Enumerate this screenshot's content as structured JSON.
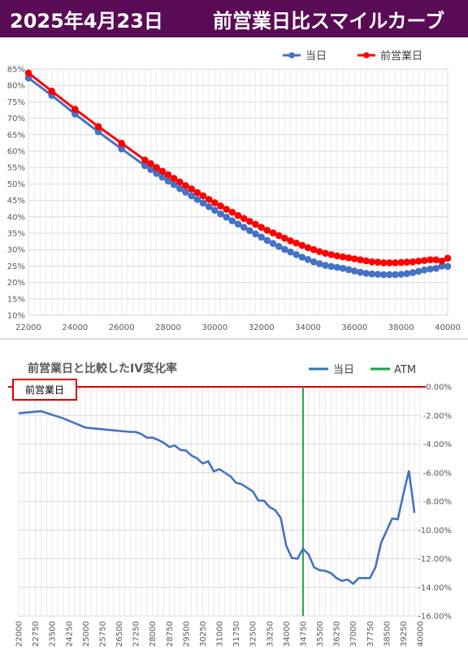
{
  "header": {
    "date": "2025年4月23日",
    "title": "前営業日比スマイルカーブ"
  },
  "chart_data": [
    {
      "type": "line",
      "title": "",
      "x_ticks": [
        22000,
        24000,
        26000,
        28000,
        30000,
        32000,
        34000,
        36000,
        38000,
        40000
      ],
      "y_ticks": [
        "10%",
        "15%",
        "20%",
        "25%",
        "30%",
        "35%",
        "40%",
        "45%",
        "50%",
        "55%",
        "60%",
        "65%",
        "70%",
        "75%",
        "80%",
        "85%"
      ],
      "xlim": [
        22000,
        40000
      ],
      "ylim": [
        10,
        85
      ],
      "legend_position": "top-right",
      "grid": true,
      "series": [
        {
          "name": "当日",
          "color": "#4472c4",
          "points": [
            [
              22000,
              82.3
            ],
            [
              23000,
              77.0
            ],
            [
              24000,
              71.3
            ],
            [
              25000,
              65.9
            ],
            [
              26000,
              60.7
            ],
            [
              27000,
              55.6
            ],
            [
              27250,
              54.4
            ],
            [
              27500,
              53.2
            ],
            [
              27750,
              52.1
            ],
            [
              28000,
              50.9
            ],
            [
              28250,
              49.8
            ],
            [
              28500,
              48.6
            ],
            [
              28750,
              47.5
            ],
            [
              29000,
              46.4
            ],
            [
              29250,
              45.3
            ],
            [
              29500,
              44.2
            ],
            [
              29750,
              43.1
            ],
            [
              30000,
              42.0
            ],
            [
              30250,
              40.9
            ],
            [
              30500,
              39.9
            ],
            [
              30750,
              38.8
            ],
            [
              31000,
              37.8
            ],
            [
              31250,
              36.8
            ],
            [
              31500,
              35.8
            ],
            [
              31750,
              34.8
            ],
            [
              32000,
              33.8
            ],
            [
              32250,
              32.8
            ],
            [
              32500,
              31.9
            ],
            [
              32750,
              31.0
            ],
            [
              33000,
              30.1
            ],
            [
              33250,
              29.3
            ],
            [
              33500,
              28.5
            ],
            [
              33750,
              27.7
            ],
            [
              34000,
              27.0
            ],
            [
              34250,
              26.3
            ],
            [
              34500,
              25.7
            ],
            [
              34750,
              25.2
            ],
            [
              35000,
              24.9
            ],
            [
              35250,
              24.6
            ],
            [
              35500,
              24.3
            ],
            [
              35750,
              23.9
            ],
            [
              36000,
              23.5
            ],
            [
              36250,
              23.1
            ],
            [
              36500,
              22.8
            ],
            [
              36750,
              22.6
            ],
            [
              37000,
              22.5
            ],
            [
              37250,
              22.4
            ],
            [
              37500,
              22.4
            ],
            [
              37750,
              22.4
            ],
            [
              38000,
              22.5
            ],
            [
              38250,
              22.7
            ],
            [
              38500,
              23.0
            ],
            [
              38750,
              23.4
            ],
            [
              39000,
              23.8
            ],
            [
              39250,
              24.1
            ],
            [
              39500,
              24.3
            ],
            [
              39750,
              25.0
            ],
            [
              40000,
              24.9
            ]
          ]
        },
        {
          "name": "前営業日",
          "color": "#ff0000",
          "points": [
            [
              22000,
              83.8
            ],
            [
              23000,
              78.3
            ],
            [
              24000,
              72.8
            ],
            [
              25000,
              67.5
            ],
            [
              26000,
              62.4
            ],
            [
              27000,
              57.3
            ],
            [
              27250,
              56.2
            ],
            [
              27500,
              55.0
            ],
            [
              27750,
              53.9
            ],
            [
              28000,
              52.8
            ],
            [
              28250,
              51.7
            ],
            [
              28500,
              50.6
            ],
            [
              28750,
              49.5
            ],
            [
              29000,
              48.5
            ],
            [
              29250,
              47.4
            ],
            [
              29500,
              46.4
            ],
            [
              29750,
              45.3
            ],
            [
              30000,
              44.3
            ],
            [
              30250,
              43.3
            ],
            [
              30500,
              42.3
            ],
            [
              30750,
              41.4
            ],
            [
              31000,
              40.4
            ],
            [
              31250,
              39.5
            ],
            [
              31500,
              38.6
            ],
            [
              31750,
              37.7
            ],
            [
              32000,
              36.8
            ],
            [
              32250,
              35.9
            ],
            [
              32500,
              35.1
            ],
            [
              32750,
              34.3
            ],
            [
              33000,
              33.5
            ],
            [
              33250,
              32.7
            ],
            [
              33500,
              32.0
            ],
            [
              33750,
              31.3
            ],
            [
              34000,
              30.6
            ],
            [
              34250,
              30.0
            ],
            [
              34500,
              29.4
            ],
            [
              34750,
              28.9
            ],
            [
              35000,
              28.5
            ],
            [
              35250,
              28.1
            ],
            [
              35500,
              27.8
            ],
            [
              35750,
              27.5
            ],
            [
              36000,
              27.2
            ],
            [
              36250,
              26.9
            ],
            [
              36500,
              26.6
            ],
            [
              36750,
              26.3
            ],
            [
              37000,
              26.2
            ],
            [
              37250,
              26.0
            ],
            [
              37500,
              26.0
            ],
            [
              37750,
              26.0
            ],
            [
              38000,
              26.1
            ],
            [
              38250,
              26.2
            ],
            [
              38500,
              26.3
            ],
            [
              38750,
              26.5
            ],
            [
              39000,
              26.7
            ],
            [
              39250,
              26.9
            ],
            [
              39500,
              26.9
            ],
            [
              39750,
              26.5
            ],
            [
              40000,
              27.4
            ]
          ]
        }
      ]
    },
    {
      "type": "line",
      "title": "前営業日と比較したIV変化率",
      "reference_label": "前営業日",
      "x_ticks": [
        22000,
        22750,
        23500,
        24250,
        25000,
        25750,
        26500,
        27250,
        28000,
        28750,
        29500,
        30250,
        31000,
        31750,
        32500,
        33250,
        34000,
        34750,
        35500,
        36250,
        37000,
        37750,
        38500,
        39250,
        40000
      ],
      "y_ticks": [
        "0.00%",
        "-2.00%",
        "-4.00%",
        "-6.00%",
        "-8.00%",
        "-10.00%",
        "-12.00%",
        "-14.00%",
        "-16.00%"
      ],
      "ylim": [
        -16,
        0
      ],
      "legend_position": "top-right",
      "grid": true,
      "atm_strike": 34750,
      "series": [
        {
          "name": "当日",
          "color": "#4472c4",
          "points": [
            [
              22000,
              -1.85
            ],
            [
              23000,
              -1.7
            ],
            [
              24000,
              -2.2
            ],
            [
              25000,
              -2.85
            ],
            [
              26000,
              -3.0
            ],
            [
              27000,
              -3.15
            ],
            [
              27250,
              -3.15
            ],
            [
              27500,
              -3.3
            ],
            [
              27750,
              -3.55
            ],
            [
              28000,
              -3.55
            ],
            [
              28250,
              -3.7
            ],
            [
              28500,
              -3.9
            ],
            [
              28750,
              -4.2
            ],
            [
              29000,
              -4.1
            ],
            [
              29250,
              -4.4
            ],
            [
              29500,
              -4.45
            ],
            [
              29750,
              -4.8
            ],
            [
              30000,
              -5.0
            ],
            [
              30250,
              -5.35
            ],
            [
              30500,
              -5.2
            ],
            [
              30750,
              -5.9
            ],
            [
              31000,
              -5.75
            ],
            [
              31250,
              -6.0
            ],
            [
              31500,
              -6.25
            ],
            [
              31750,
              -6.7
            ],
            [
              32000,
              -6.8
            ],
            [
              32250,
              -7.05
            ],
            [
              32500,
              -7.3
            ],
            [
              32750,
              -7.95
            ],
            [
              33000,
              -7.95
            ],
            [
              33250,
              -8.4
            ],
            [
              33500,
              -8.6
            ],
            [
              33750,
              -9.15
            ],
            [
              34000,
              -11.1
            ],
            [
              34250,
              -11.95
            ],
            [
              34500,
              -12.0
            ],
            [
              34750,
              -11.3
            ],
            [
              35000,
              -11.7
            ],
            [
              35250,
              -12.6
            ],
            [
              35500,
              -12.8
            ],
            [
              35750,
              -12.85
            ],
            [
              36000,
              -13.0
            ],
            [
              36250,
              -13.35
            ],
            [
              36500,
              -13.55
            ],
            [
              36750,
              -13.45
            ],
            [
              37000,
              -13.75
            ],
            [
              37250,
              -13.35
            ],
            [
              37500,
              -13.35
            ],
            [
              37750,
              -13.35
            ],
            [
              38000,
              -12.6
            ],
            [
              38250,
              -10.9
            ],
            [
              38500,
              -10.05
            ],
            [
              38750,
              -9.2
            ],
            [
              39000,
              -9.25
            ],
            [
              39250,
              -7.5
            ],
            [
              39500,
              -5.85
            ],
            [
              39750,
              -8.8
            ]
          ]
        }
      ]
    }
  ]
}
